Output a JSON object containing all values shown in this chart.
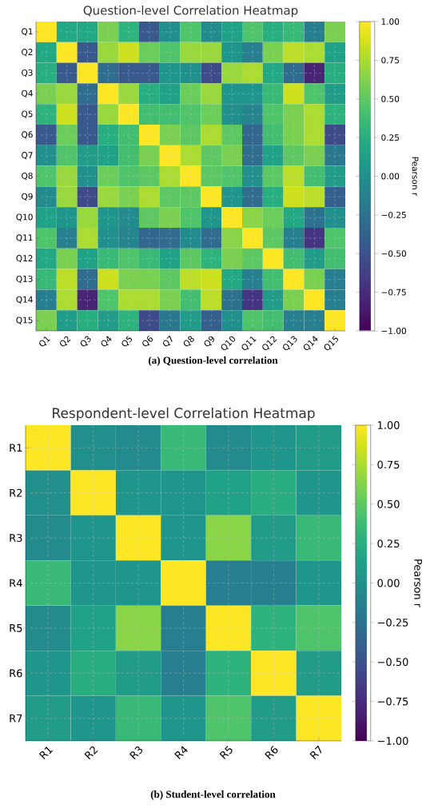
{
  "chart_data": [
    {
      "type": "heatmap",
      "title": "Question-level Correlation Heatmap",
      "clabel": "Pearson r",
      "grid": true,
      "categories": [
        "Q1",
        "Q2",
        "Q3",
        "Q4",
        "Q5",
        "Q6",
        "Q7",
        "Q8",
        "Q9",
        "Q10",
        "Q11",
        "Q12",
        "Q13",
        "Q14",
        "Q15"
      ],
      "y_categories": [
        "Q1",
        "Q2",
        "Q3",
        "Q4",
        "Q5",
        "Q6",
        "Q7",
        "Q8",
        "Q9",
        "Q10",
        "Q11",
        "Q12",
        "Q13",
        "Q14",
        "Q15"
      ],
      "cells": [
        [
          1.0,
          0.2,
          0.2,
          0.6,
          0.3,
          -0.45,
          0.0,
          0.45,
          -0.05,
          0.15,
          0.45,
          0.25,
          0.35,
          -0.15,
          0.6
        ],
        [
          0.2,
          1.0,
          -0.45,
          0.7,
          0.85,
          0.55,
          0.45,
          0.7,
          0.7,
          0.05,
          -0.15,
          0.6,
          0.8,
          0.75,
          0.15
        ],
        [
          0.25,
          -0.45,
          1.0,
          -0.3,
          -0.45,
          -0.45,
          0.05,
          0.0,
          -0.55,
          0.7,
          0.75,
          0.2,
          -0.3,
          -0.8,
          0.25
        ],
        [
          0.6,
          0.7,
          -0.3,
          1.0,
          0.7,
          0.25,
          0.15,
          0.55,
          0.7,
          0.05,
          0.05,
          0.35,
          0.85,
          0.45,
          0.1
        ],
        [
          0.3,
          0.85,
          -0.45,
          0.7,
          1.0,
          0.4,
          0.4,
          0.45,
          0.55,
          0.0,
          -0.1,
          0.45,
          0.6,
          0.75,
          0.3
        ],
        [
          -0.45,
          0.55,
          -0.45,
          0.25,
          0.4,
          1.0,
          0.6,
          0.5,
          0.75,
          0.5,
          -0.35,
          0.4,
          0.6,
          0.75,
          -0.55
        ],
        [
          0.0,
          0.45,
          0.1,
          0.15,
          0.4,
          0.6,
          1.0,
          0.75,
          0.5,
          0.6,
          -0.3,
          0.15,
          0.5,
          0.6,
          -0.2
        ],
        [
          0.45,
          0.7,
          0.0,
          0.55,
          0.45,
          0.5,
          0.75,
          1.0,
          0.5,
          0.45,
          0.0,
          0.5,
          0.8,
          0.4,
          0.1
        ],
        [
          -0.05,
          0.7,
          -0.55,
          0.7,
          0.6,
          0.75,
          0.5,
          0.5,
          1.0,
          0.05,
          -0.3,
          0.25,
          0.85,
          0.8,
          -0.4
        ],
        [
          0.15,
          0.05,
          0.7,
          0.05,
          -0.05,
          0.5,
          0.6,
          0.45,
          0.05,
          1.0,
          0.65,
          0.55,
          0.2,
          -0.25,
          0.0
        ],
        [
          0.45,
          -0.15,
          0.75,
          0.0,
          -0.1,
          -0.35,
          -0.3,
          -0.05,
          -0.3,
          0.65,
          1.0,
          0.5,
          -0.15,
          -0.7,
          0.45
        ],
        [
          0.2,
          0.6,
          0.15,
          0.35,
          0.45,
          0.35,
          0.15,
          0.5,
          0.3,
          0.6,
          0.5,
          1.0,
          0.4,
          0.1,
          0.4
        ],
        [
          0.35,
          0.8,
          -0.3,
          0.85,
          0.6,
          0.6,
          0.5,
          0.8,
          0.85,
          0.2,
          -0.15,
          0.4,
          1.0,
          0.6,
          -0.15
        ],
        [
          -0.15,
          0.75,
          -0.8,
          0.45,
          0.75,
          0.75,
          0.6,
          0.4,
          0.8,
          -0.25,
          -0.7,
          0.1,
          0.6,
          1.0,
          -0.15
        ],
        [
          0.6,
          0.1,
          0.25,
          0.1,
          0.3,
          -0.55,
          -0.2,
          0.1,
          -0.4,
          0.0,
          0.45,
          0.4,
          -0.15,
          -0.15,
          1.0
        ]
      ],
      "clim": [
        -1,
        1
      ],
      "cticks": [
        {
          "value": -1,
          "label": "−1.00"
        },
        {
          "value": -0.75,
          "label": "−0.75"
        },
        {
          "value": -0.5,
          "label": "−0.50"
        },
        {
          "value": -0.25,
          "label": "−0.25"
        },
        {
          "value": 0,
          "label": "0.00"
        },
        {
          "value": 0.25,
          "label": "0.25"
        },
        {
          "value": 0.5,
          "label": "0.50"
        },
        {
          "value": 0.75,
          "label": "0.75"
        },
        {
          "value": 1,
          "label": "1.00"
        }
      ],
      "annotations": [
        "(a) Question-level correlation"
      ]
    },
    {
      "type": "heatmap",
      "title": "Respondent-level Correlation Heatmap",
      "clabel": "Pearson r",
      "grid": true,
      "categories": [
        "R1",
        "R2",
        "R3",
        "R4",
        "R5",
        "R6",
        "R7"
      ],
      "y_categories": [
        "R1",
        "R2",
        "R3",
        "R4",
        "R5",
        "R6",
        "R7"
      ],
      "cells": [
        [
          1.0,
          0.0,
          -0.05,
          0.35,
          -0.05,
          0.05,
          0.1
        ],
        [
          0.0,
          1.0,
          0.05,
          0.05,
          0.15,
          0.25,
          0.05
        ],
        [
          -0.05,
          0.05,
          1.0,
          0.05,
          0.65,
          0.1,
          0.35
        ],
        [
          0.35,
          0.05,
          0.05,
          1.0,
          -0.15,
          -0.15,
          0.05
        ],
        [
          -0.05,
          0.15,
          0.65,
          -0.15,
          1.0,
          0.3,
          0.45
        ],
        [
          0.05,
          0.25,
          0.1,
          -0.15,
          0.3,
          1.0,
          0.1
        ],
        [
          0.1,
          0.05,
          0.35,
          0.05,
          0.45,
          0.1,
          1.0
        ]
      ],
      "clim": [
        -1,
        1
      ],
      "cticks": [
        {
          "value": -1,
          "label": "−1.00"
        },
        {
          "value": -0.75,
          "label": "−0.75"
        },
        {
          "value": -0.5,
          "label": "−0.50"
        },
        {
          "value": -0.25,
          "label": "−0.25"
        },
        {
          "value": 0,
          "label": "0.00"
        },
        {
          "value": 0.25,
          "label": "0.25"
        },
        {
          "value": 0.5,
          "label": "0.50"
        },
        {
          "value": 0.75,
          "label": "0.75"
        },
        {
          "value": 1,
          "label": "1.00"
        }
      ],
      "annotations": [
        "(b) Student-level correlation"
      ]
    }
  ]
}
